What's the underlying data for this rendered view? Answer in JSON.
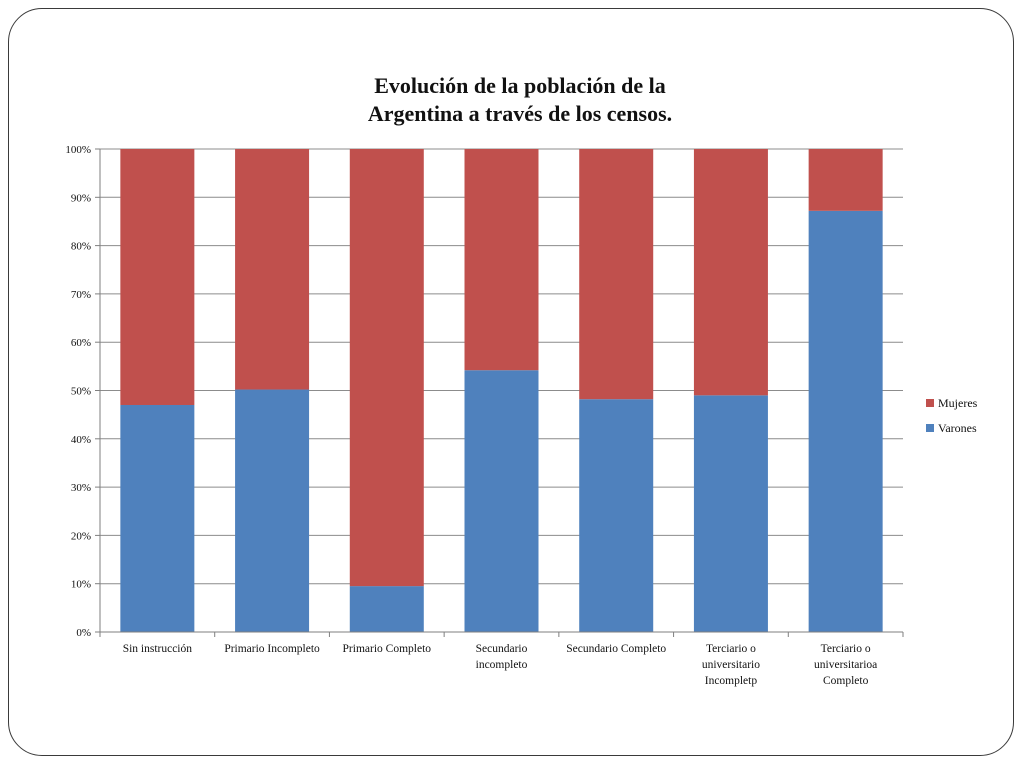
{
  "colors": {
    "mujeres": "#C0504D",
    "varones": "#4F81BD",
    "grid": "#8c8c8c",
    "axis": "#7f7f7f"
  },
  "chart_data": {
    "type": "bar",
    "stacked": "percent",
    "title_lines": [
      "Evolución de la población de la",
      "Argentina a través de los censos."
    ],
    "xlabel": "",
    "ylabel": "",
    "ylim": [
      0,
      100
    ],
    "y_ticks": [
      "0%",
      "10%",
      "20%",
      "30%",
      "40%",
      "50%",
      "60%",
      "70%",
      "80%",
      "90%",
      "100%"
    ],
    "grid": true,
    "legend_position": "right",
    "categories": [
      [
        "Sin instrucción"
      ],
      [
        "Primario Incompleto"
      ],
      [
        "Primario Completo"
      ],
      [
        "Secundario",
        "incompleto"
      ],
      [
        "Secundario Completo"
      ],
      [
        "Terciario o",
        "universitario",
        "Incompletp"
      ],
      [
        "Terciario o",
        "universitarioa",
        "Completo"
      ]
    ],
    "series": [
      {
        "name": "Varones",
        "values": [
          47,
          50.2,
          9.5,
          54.2,
          48.2,
          49,
          87.2
        ]
      },
      {
        "name": "Mujeres",
        "values": [
          53,
          49.8,
          90.5,
          45.8,
          51.8,
          51,
          12.8
        ]
      }
    ],
    "legend_order": [
      "Mujeres",
      "Varones"
    ]
  }
}
